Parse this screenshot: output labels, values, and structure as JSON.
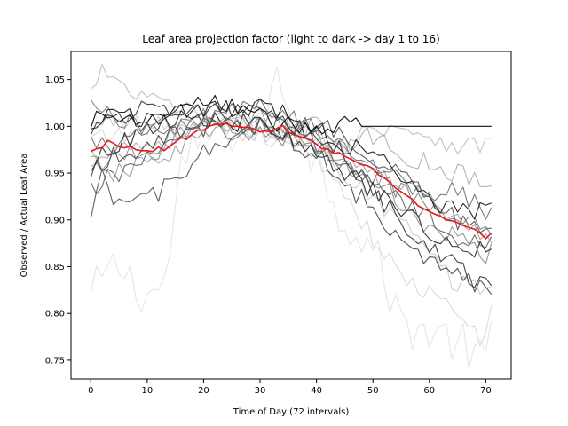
{
  "chart_data": {
    "type": "line",
    "title": "Leaf area projection factor (light to dark -> day 1 to 16)",
    "xlabel": "Time of Day (72 intervals)",
    "ylabel": "Observed / Actual Leaf Area",
    "xlim": [
      -3.5,
      74.5
    ],
    "ylim": [
      0.73,
      1.08
    ],
    "xticks": [
      0,
      10,
      20,
      30,
      40,
      50,
      60,
      70
    ],
    "yticks": [
      0.75,
      0.8,
      0.85,
      0.9,
      0.95,
      1.0,
      1.05
    ],
    "ytick_labels": [
      "0.75",
      "0.80",
      "0.85",
      "0.90",
      "0.95",
      "1.00",
      "1.05"
    ],
    "grid": false,
    "legend": "none",
    "mean_color": "#e8161a",
    "day_colors": [
      "#e6e6e6",
      "#dcdcdc",
      "#d0d0d0",
      "#c2c2c2",
      "#b4b4b4",
      "#a6a6a6",
      "#989898",
      "#8a8a8a",
      "#7c7c7c",
      "#6e6e6e",
      "#606060",
      "#525252",
      "#444444",
      "#363636",
      "#282828",
      "#101010"
    ],
    "series": [
      {
        "anchors": [
          [
            0,
            0.815
          ],
          [
            2,
            0.838
          ],
          [
            5,
            0.85
          ],
          [
            8,
            0.83
          ],
          [
            10,
            0.82
          ],
          [
            13,
            0.83
          ],
          [
            16,
            0.95
          ],
          [
            20,
            0.99
          ],
          [
            30,
            1.0
          ],
          [
            33,
            1.05
          ],
          [
            40,
            0.96
          ],
          [
            45,
            0.9
          ],
          [
            50,
            0.87
          ],
          [
            55,
            0.79
          ],
          [
            60,
            0.78
          ],
          [
            65,
            0.77
          ],
          [
            69,
            0.75
          ],
          [
            71,
            0.77
          ]
        ]
      },
      {
        "anchors": [
          [
            0,
            0.985
          ],
          [
            5,
            0.99
          ],
          [
            10,
            0.99
          ],
          [
            20,
            1.0
          ],
          [
            30,
            0.99
          ],
          [
            40,
            0.97
          ],
          [
            45,
            0.93
          ],
          [
            50,
            0.88
          ],
          [
            55,
            0.84
          ],
          [
            60,
            0.82
          ],
          [
            65,
            0.8
          ],
          [
            70,
            0.77
          ],
          [
            71,
            0.8
          ]
        ]
      },
      {
        "anchors": [
          [
            0,
            1.0
          ],
          [
            5,
            1.01
          ],
          [
            10,
            1.0
          ],
          [
            20,
            1.0
          ],
          [
            30,
            0.99
          ],
          [
            40,
            0.98
          ],
          [
            45,
            0.95
          ],
          [
            50,
            0.92
          ],
          [
            55,
            0.9
          ],
          [
            60,
            0.86
          ],
          [
            65,
            0.83
          ],
          [
            70,
            0.83
          ],
          [
            71,
            0.82
          ]
        ]
      },
      {
        "anchors": [
          [
            0,
            1.035
          ],
          [
            2,
            1.06
          ],
          [
            5,
            1.04
          ],
          [
            10,
            1.03
          ],
          [
            20,
            1.01
          ],
          [
            30,
            1.0
          ],
          [
            40,
            0.99
          ],
          [
            45,
            0.98
          ],
          [
            50,
            1.0
          ],
          [
            55,
            1.0
          ],
          [
            60,
            0.99
          ],
          [
            65,
            0.98
          ],
          [
            70,
            0.98
          ],
          [
            71,
            0.98
          ]
        ]
      },
      {
        "anchors": [
          [
            0,
            0.97
          ],
          [
            5,
            0.98
          ],
          [
            10,
            0.98
          ],
          [
            20,
            1.0
          ],
          [
            30,
            1.0
          ],
          [
            40,
            1.0
          ],
          [
            45,
            0.98
          ],
          [
            50,
            0.99
          ],
          [
            55,
            0.97
          ],
          [
            60,
            0.96
          ],
          [
            65,
            0.95
          ],
          [
            70,
            0.94
          ],
          [
            71,
            0.93
          ]
        ]
      },
      {
        "anchors": [
          [
            0,
            0.95
          ],
          [
            5,
            0.95
          ],
          [
            10,
            0.96
          ],
          [
            20,
            0.99
          ],
          [
            30,
            1.01
          ],
          [
            40,
            0.99
          ],
          [
            45,
            0.97
          ],
          [
            50,
            0.95
          ],
          [
            55,
            0.94
          ],
          [
            60,
            0.92
          ],
          [
            65,
            0.9
          ],
          [
            70,
            0.88
          ],
          [
            71,
            0.87
          ]
        ]
      },
      {
        "anchors": [
          [
            0,
            0.96
          ],
          [
            5,
            0.97
          ],
          [
            10,
            0.97
          ],
          [
            20,
            1.0
          ],
          [
            30,
            1.0
          ],
          [
            40,
            0.98
          ],
          [
            45,
            0.96
          ],
          [
            50,
            0.94
          ],
          [
            55,
            0.92
          ],
          [
            60,
            0.89
          ],
          [
            65,
            0.88
          ],
          [
            70,
            0.86
          ],
          [
            71,
            0.87
          ]
        ]
      },
      {
        "anchors": [
          [
            0,
            1.02
          ],
          [
            5,
            1.01
          ],
          [
            10,
            1.0
          ],
          [
            20,
            1.0
          ],
          [
            30,
            0.99
          ],
          [
            40,
            0.98
          ],
          [
            45,
            0.96
          ],
          [
            50,
            0.95
          ],
          [
            55,
            0.93
          ],
          [
            60,
            0.91
          ],
          [
            65,
            0.9
          ],
          [
            70,
            0.89
          ],
          [
            71,
            0.88
          ]
        ]
      },
      {
        "anchors": [
          [
            0,
            0.98
          ],
          [
            5,
            0.98
          ],
          [
            10,
            0.99
          ],
          [
            20,
            1.01
          ],
          [
            30,
            1.02
          ],
          [
            40,
            1.0
          ],
          [
            45,
            0.98
          ],
          [
            50,
            0.96
          ],
          [
            55,
            0.94
          ],
          [
            60,
            0.93
          ],
          [
            65,
            0.93
          ],
          [
            70,
            0.91
          ],
          [
            71,
            0.91
          ]
        ]
      },
      {
        "anchors": [
          [
            0,
            0.93
          ],
          [
            2,
            0.94
          ],
          [
            5,
            0.95
          ],
          [
            10,
            0.97
          ],
          [
            20,
            1.0
          ],
          [
            30,
            1.0
          ],
          [
            40,
            0.98
          ],
          [
            45,
            0.96
          ],
          [
            50,
            0.94
          ],
          [
            55,
            0.92
          ],
          [
            60,
            0.9
          ],
          [
            65,
            0.88
          ],
          [
            70,
            0.87
          ],
          [
            71,
            0.88
          ]
        ]
      },
      {
        "anchors": [
          [
            0,
            0.89
          ],
          [
            2,
            0.95
          ],
          [
            4,
            0.92
          ],
          [
            8,
            0.92
          ],
          [
            12,
            0.93
          ],
          [
            15,
            0.94
          ],
          [
            20,
            0.97
          ],
          [
            30,
            1.0
          ],
          [
            40,
            1.0
          ],
          [
            45,
            0.99
          ],
          [
            50,
            0.97
          ],
          [
            55,
            0.95
          ],
          [
            60,
            0.92
          ],
          [
            65,
            0.9
          ],
          [
            70,
            0.88
          ],
          [
            71,
            0.89
          ]
        ]
      },
      {
        "anchors": [
          [
            0,
            0.955
          ],
          [
            5,
            0.97
          ],
          [
            10,
            0.98
          ],
          [
            20,
            1.0
          ],
          [
            30,
            1.0
          ],
          [
            40,
            0.97
          ],
          [
            45,
            0.94
          ],
          [
            50,
            0.91
          ],
          [
            55,
            0.88
          ],
          [
            60,
            0.86
          ],
          [
            65,
            0.84
          ],
          [
            70,
            0.83
          ],
          [
            71,
            0.82
          ]
        ]
      },
      {
        "anchors": [
          [
            0,
            1.0
          ],
          [
            5,
            1.01
          ],
          [
            10,
            1.02
          ],
          [
            20,
            1.02
          ],
          [
            30,
            1.01
          ],
          [
            40,
            0.99
          ],
          [
            45,
            0.97
          ],
          [
            50,
            0.93
          ],
          [
            55,
            0.9
          ],
          [
            60,
            0.87
          ],
          [
            65,
            0.85
          ],
          [
            70,
            0.83
          ],
          [
            71,
            0.83
          ]
        ]
      },
      {
        "anchors": [
          [
            0,
            0.96
          ],
          [
            5,
            0.98
          ],
          [
            10,
            1.0
          ],
          [
            20,
            1.01
          ],
          [
            30,
            1.0
          ],
          [
            40,
            0.97
          ],
          [
            45,
            0.95
          ],
          [
            50,
            0.93
          ],
          [
            55,
            0.91
          ],
          [
            60,
            0.89
          ],
          [
            65,
            0.87
          ],
          [
            70,
            0.87
          ],
          [
            71,
            0.87
          ]
        ]
      },
      {
        "anchors": [
          [
            0,
            1.005
          ],
          [
            5,
            1.01
          ],
          [
            10,
            1.01
          ],
          [
            20,
            1.02
          ],
          [
            30,
            1.02
          ],
          [
            40,
            1.0
          ],
          [
            45,
            0.98
          ],
          [
            50,
            0.97
          ],
          [
            55,
            0.95
          ],
          [
            60,
            0.92
          ],
          [
            65,
            0.91
          ],
          [
            70,
            0.91
          ],
          [
            71,
            0.92
          ]
        ]
      },
      {
        "anchors": [
          [
            0,
            1.005
          ],
          [
            5,
            1.01
          ],
          [
            10,
            1.0
          ],
          [
            20,
            1.03
          ],
          [
            25,
            1.02
          ],
          [
            30,
            1.01
          ],
          [
            35,
            1.0
          ],
          [
            40,
            1.0
          ],
          [
            45,
            1.0
          ],
          [
            50,
            1.0
          ],
          [
            60,
            1.0
          ],
          [
            70,
            1.0
          ],
          [
            71,
            1.0
          ]
        ]
      }
    ],
    "mean": [
      0.973,
      0.976,
      0.977,
      0.985,
      0.982,
      0.978,
      0.977,
      0.979,
      0.975,
      0.974,
      0.974,
      0.973,
      0.978,
      0.974,
      0.979,
      0.983,
      0.988,
      0.986,
      0.992,
      0.996,
      0.996,
      1.0,
      1.002,
      1.002,
      1.003,
      1.0,
      1.0,
      0.999,
      0.999,
      0.997,
      0.994,
      0.995,
      0.994,
      0.998,
      1.001,
      0.994,
      0.991,
      0.989,
      0.988,
      0.985,
      0.981,
      0.976,
      0.976,
      0.971,
      0.972,
      0.968,
      0.965,
      0.962,
      0.959,
      0.958,
      0.955,
      0.948,
      0.945,
      0.94,
      0.934,
      0.93,
      0.926,
      0.922,
      0.915,
      0.912,
      0.909,
      0.906,
      0.904,
      0.9,
      0.899,
      0.897,
      0.894,
      0.892,
      0.89,
      0.886,
      0.88,
      0.886
    ]
  }
}
